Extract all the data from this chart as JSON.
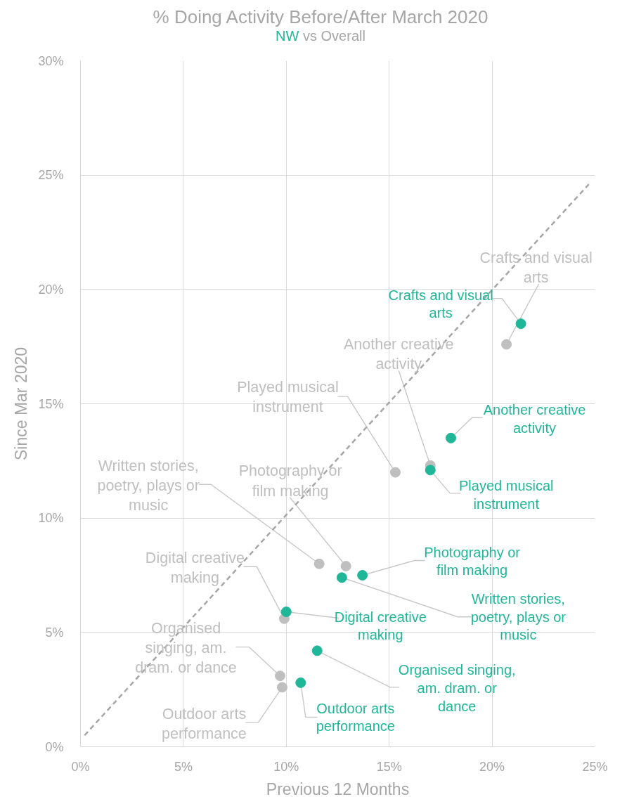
{
  "chart_data": {
    "type": "scatter",
    "title": "% Doing Activity Before/After March 2020",
    "subtitle": "NW vs Overall",
    "xlabel": "Previous 12 Months",
    "ylabel": "Since Mar 2020",
    "xlim": [
      0,
      25
    ],
    "ylim": [
      0,
      30
    ],
    "xticks": [
      {
        "value": 0,
        "label": "0%"
      },
      {
        "value": 5,
        "label": "5%"
      },
      {
        "value": 10,
        "label": "10%"
      },
      {
        "value": 15,
        "label": "15%"
      },
      {
        "value": 20,
        "label": "20%"
      },
      {
        "value": 25,
        "label": "25%"
      }
    ],
    "yticks": [
      {
        "value": 0,
        "label": "0%"
      },
      {
        "value": 5,
        "label": "5%"
      },
      {
        "value": 10,
        "label": "10%"
      },
      {
        "value": 15,
        "label": "15%"
      },
      {
        "value": 20,
        "label": "20%"
      },
      {
        "value": 25,
        "label": "25%"
      },
      {
        "value": 30,
        "label": "30%"
      }
    ],
    "grid": true,
    "marker": "circle",
    "series": [
      {
        "color": "#20b799",
        "x": [
          21.4,
          18.0,
          17.0,
          13.7,
          12.7,
          10.0,
          11.5,
          10.7
        ],
        "values": [
          18.5,
          13.5,
          12.1,
          7.5,
          7.4,
          5.9,
          4.2,
          2.8
        ]
      },
      {
        "color": "#bfbfbf",
        "x": [
          20.7,
          17.0,
          15.3,
          12.9,
          11.6,
          9.9,
          9.7,
          9.8
        ],
        "values": [
          17.6,
          12.3,
          12.0,
          7.9,
          8.0,
          5.6,
          3.1,
          2.6
        ]
      },
      {
        "type": "line",
        "color": "#a6a6a6",
        "line_style": "dashed",
        "marker": "none",
        "x": [
          0.2,
          24.7
        ],
        "values": [
          0.5,
          24.6
        ]
      }
    ],
    "annotations": [
      {
        "text": "Crafts and visual\narts",
        "x": 21.4,
        "y": 18.5
      },
      {
        "text": "Another creative\nactivity",
        "x": 18.0,
        "y": 13.5
      },
      {
        "text": "Played musical\ninstrument",
        "x": 17.0,
        "y": 12.1
      },
      {
        "text": "Photography or\nfilm making",
        "x": 13.7,
        "y": 7.5
      },
      {
        "text": "Written stories,\npoetry, plays or\nmusic",
        "x": 12.7,
        "y": 7.4
      },
      {
        "text": "Digital creative\nmaking",
        "x": 10.0,
        "y": 5.9
      },
      {
        "text": "Organised singing,\nam. dram. or\ndance",
        "x": 11.5,
        "y": 4.2
      },
      {
        "text": "Outdoor arts\nperformance",
        "x": 10.7,
        "y": 2.8
      },
      {
        "text": "Crafts and visual\narts",
        "x": 20.7,
        "y": 17.6
      },
      {
        "text": "Another creative\nactivity",
        "x": 17.0,
        "y": 12.3
      },
      {
        "text": "Played musical\ninstrument",
        "x": 15.3,
        "y": 12.0
      },
      {
        "text": "Photography or\nfilm making",
        "x": 12.9,
        "y": 7.9
      },
      {
        "text": "Written stories,\npoetry, plays or\nmusic",
        "x": 11.6,
        "y": 8.0
      },
      {
        "text": "Digital creative\nmaking",
        "x": 9.9,
        "y": 5.6
      },
      {
        "text": "Organised\nsinging, am.\ndram. or dance",
        "x": 9.7,
        "y": 3.1
      },
      {
        "text": "Outdoor arts\nperformance",
        "x": 9.8,
        "y": 2.6
      }
    ]
  }
}
